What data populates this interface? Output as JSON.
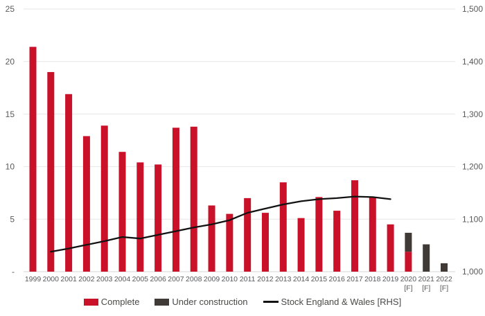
{
  "chart_data": {
    "type": "bar",
    "subtype": "stacked bars with overlay line, dual y-axes",
    "categories": [
      "1999",
      "2000",
      "2001",
      "2002",
      "2003",
      "2004",
      "2005",
      "2006",
      "2007",
      "2008",
      "2009",
      "2010",
      "2011",
      "2012",
      "2013",
      "2014",
      "2015",
      "2016",
      "2017",
      "2018",
      "2019",
      "2020",
      "2021",
      "2022"
    ],
    "forecast_years": [
      "2020",
      "2021",
      "2022"
    ],
    "forecast_label": "[F]",
    "series": [
      {
        "name": "Complete",
        "type": "bar",
        "axis": "left",
        "color": "#c9112a",
        "values": [
          21.4,
          19.0,
          16.9,
          12.9,
          13.9,
          11.4,
          10.4,
          10.2,
          13.7,
          13.8,
          6.3,
          5.5,
          7.0,
          5.6,
          8.5,
          5.1,
          7.1,
          5.8,
          8.7,
          7.1,
          4.5,
          1.9,
          0,
          0
        ]
      },
      {
        "name": "Under construction",
        "type": "bar",
        "axis": "left",
        "color": "#3f3a36",
        "values": [
          0,
          0,
          0,
          0,
          0,
          0,
          0,
          0,
          0,
          0,
          0,
          0,
          0,
          0,
          0,
          0,
          0,
          0,
          0,
          0,
          0,
          1.8,
          2.6,
          0.8
        ]
      },
      {
        "name": "Stock England & Wales [RHS]",
        "type": "line",
        "axis": "right",
        "color": "#121212",
        "values": [
          null,
          1038,
          1044,
          1051,
          1058,
          1066,
          1063,
          1070,
          1077,
          1084,
          1090,
          1098,
          1112,
          1120,
          1128,
          1134,
          1138,
          1140,
          1143,
          1142,
          1138,
          null,
          null,
          null
        ]
      }
    ],
    "left_axis": {
      "min": 0,
      "max": 25,
      "tick_values": [
        25,
        20,
        15,
        10,
        5,
        0
      ],
      "tick_labels": [
        "25",
        "20",
        "15",
        "10",
        "5",
        "-"
      ]
    },
    "right_axis": {
      "min": 1000,
      "max": 1500,
      "tick_values": [
        1500,
        1400,
        1300,
        1200,
        1100,
        1000
      ],
      "tick_labels": [
        "1,500",
        "1,400",
        "1,300",
        "1,200",
        "1,100",
        "1,000"
      ]
    },
    "title": "",
    "xlabel": "",
    "ylabel": "",
    "grid": true,
    "legend_position": "bottom"
  },
  "legend": {
    "complete": "Complete",
    "under_construction": "Under construction",
    "stock": "Stock England & Wales [RHS]"
  },
  "colors": {
    "bar_complete": "#c9112a",
    "bar_under_construction": "#3f3a36",
    "stock_line": "#121212",
    "gridline": "#e6e6e6",
    "axis_line": "#d6d6d6",
    "tick_text": "#58595b"
  }
}
